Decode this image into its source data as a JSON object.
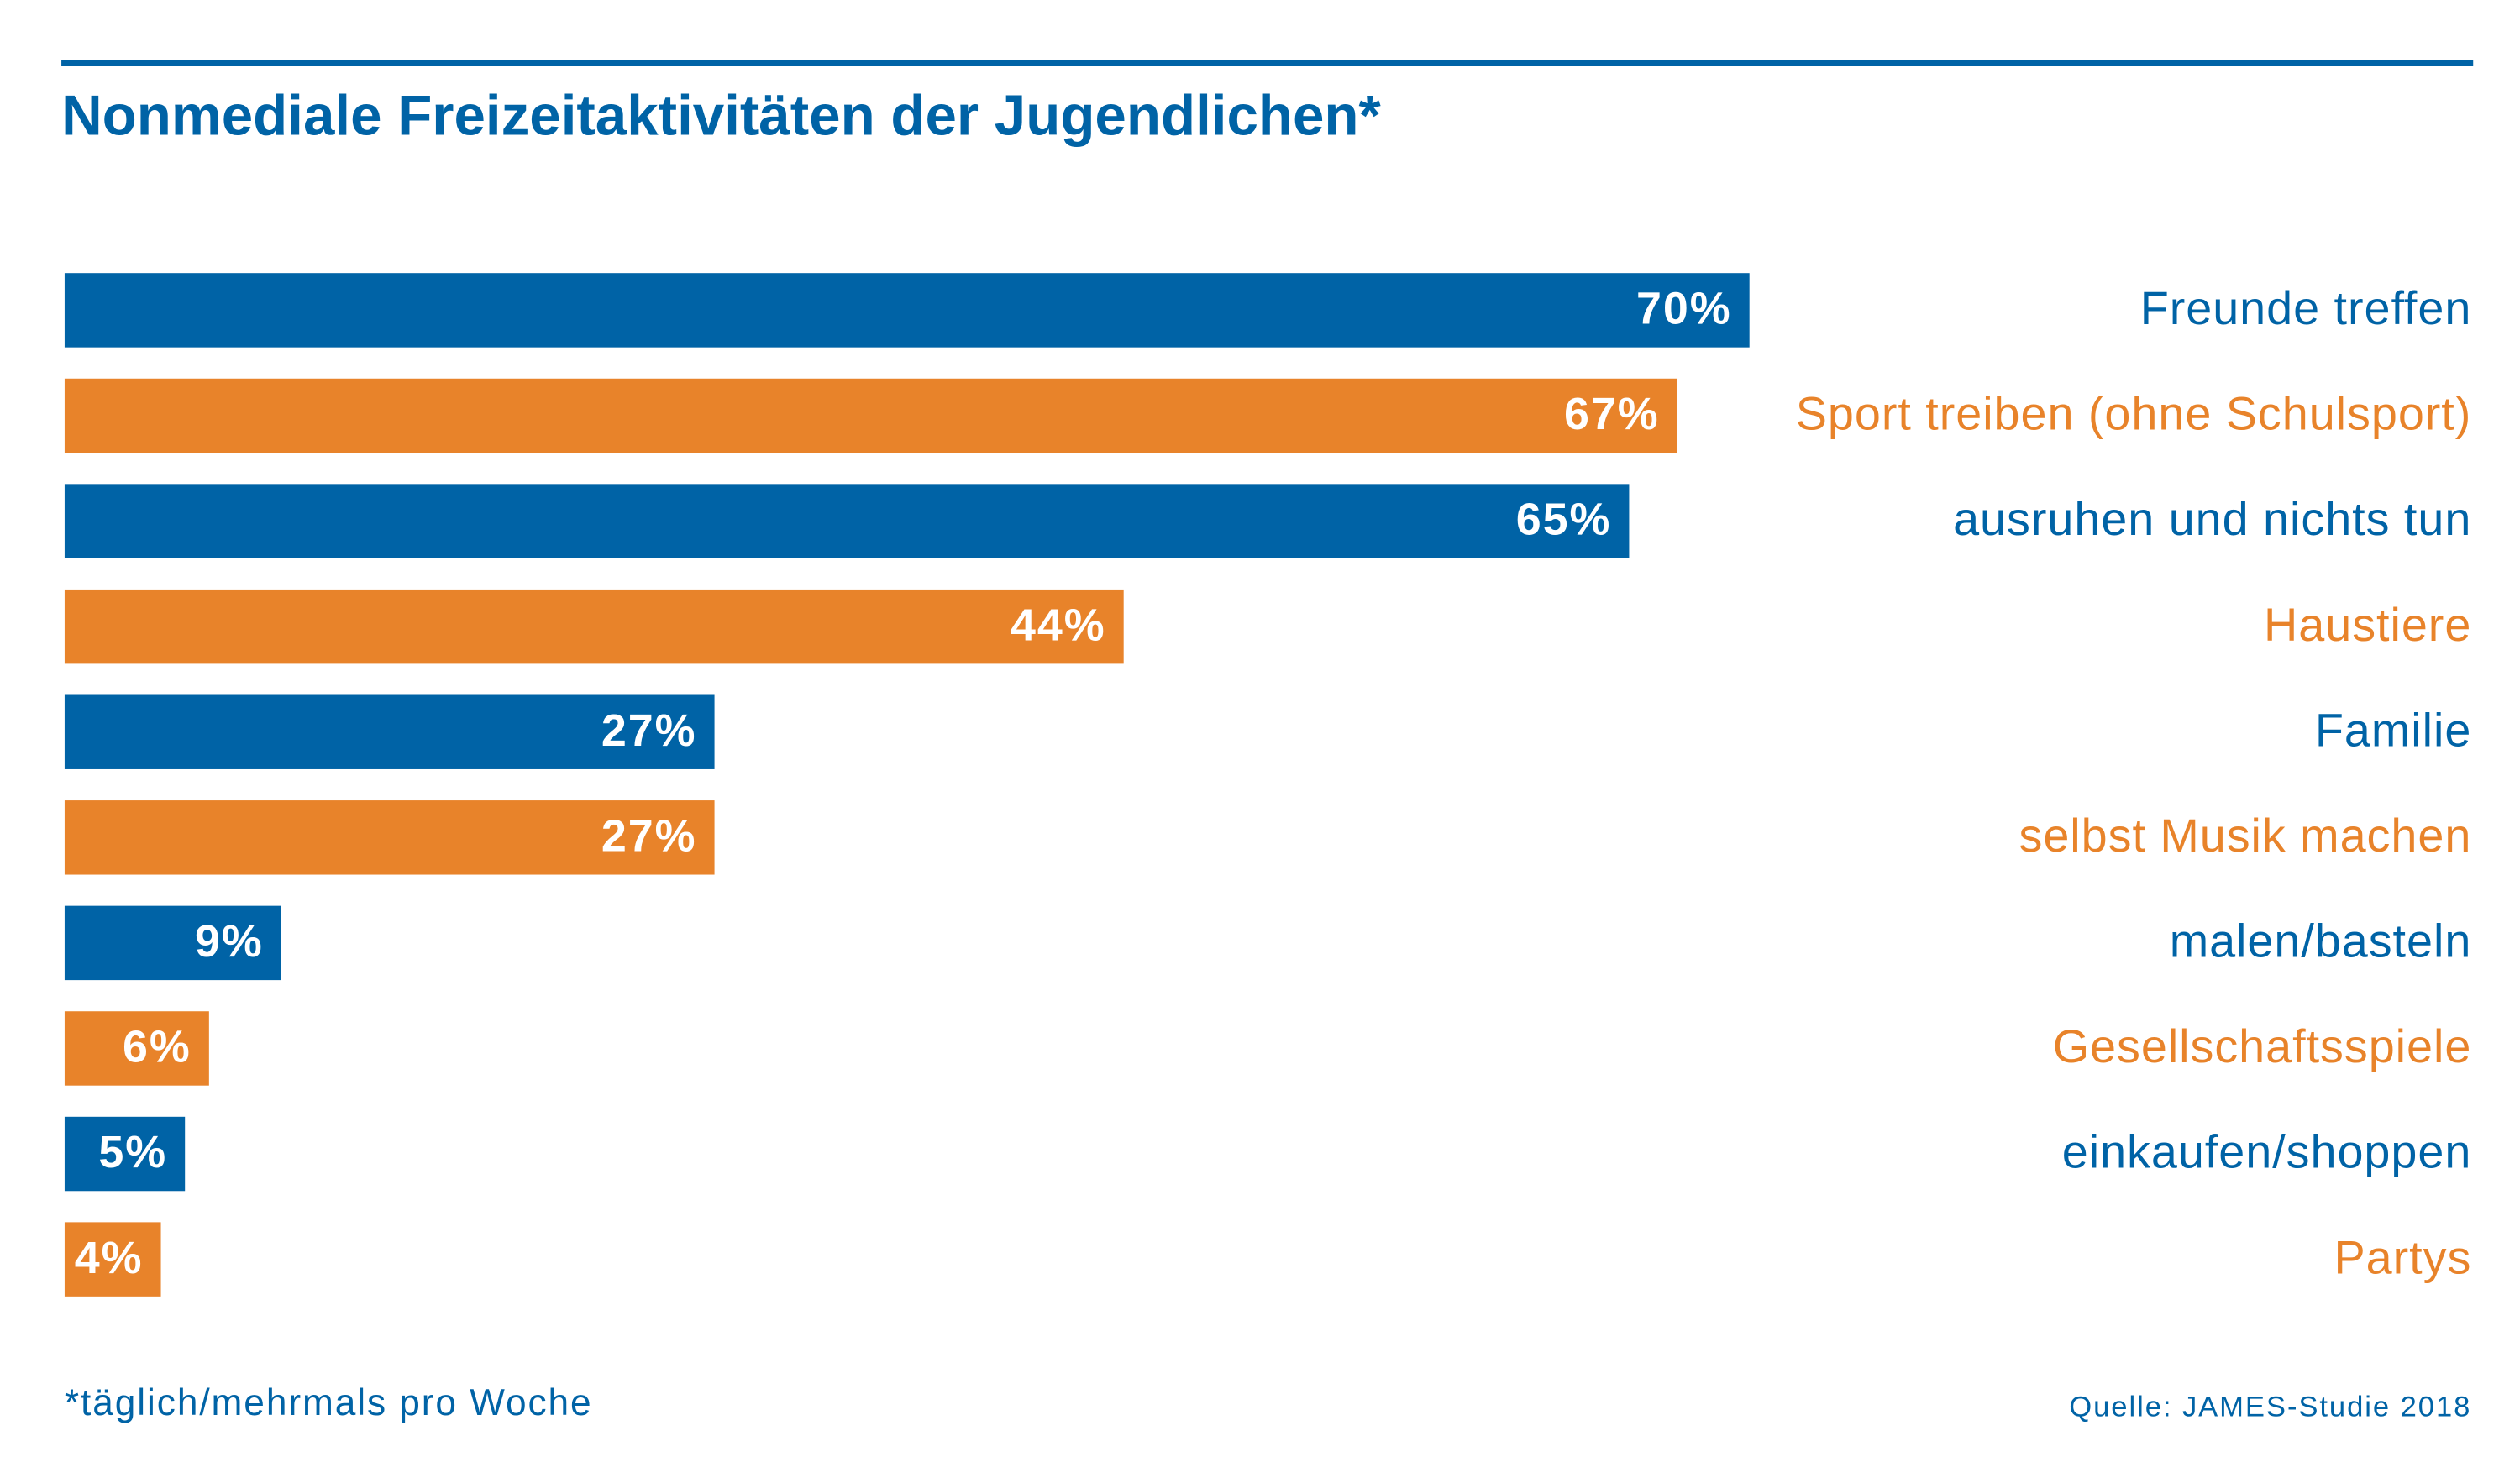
{
  "chart_data": {
    "type": "bar",
    "orientation": "horizontal",
    "title": "Nonmediale Freizeitaktivitäten der Jugendlichen*",
    "categories": [
      "Freunde treffen",
      "Sport treiben (ohne Schulsport)",
      "ausruhen und nichts tun",
      "Haustiere",
      "Familie",
      "selbst Musik machen",
      "malen/basteln",
      "Gesellschaftsspiele",
      "einkaufen/shoppen",
      "Partys"
    ],
    "values": [
      70,
      67,
      65,
      44,
      27,
      27,
      9,
      6,
      5,
      4
    ],
    "value_labels": [
      "70%",
      "67%",
      "65%",
      "44%",
      "27%",
      "27%",
      "9%",
      "6%",
      "5%",
      "4%"
    ],
    "colors": [
      "#0063a6",
      "#e8832a",
      "#0063a6",
      "#e8832a",
      "#0063a6",
      "#e8832a",
      "#0063a6",
      "#e8832a",
      "#0063a6",
      "#e8832a"
    ],
    "footnote": "*täglich/mehrmals pro Woche",
    "source": "Quelle: JAMES-Studie 2018"
  }
}
